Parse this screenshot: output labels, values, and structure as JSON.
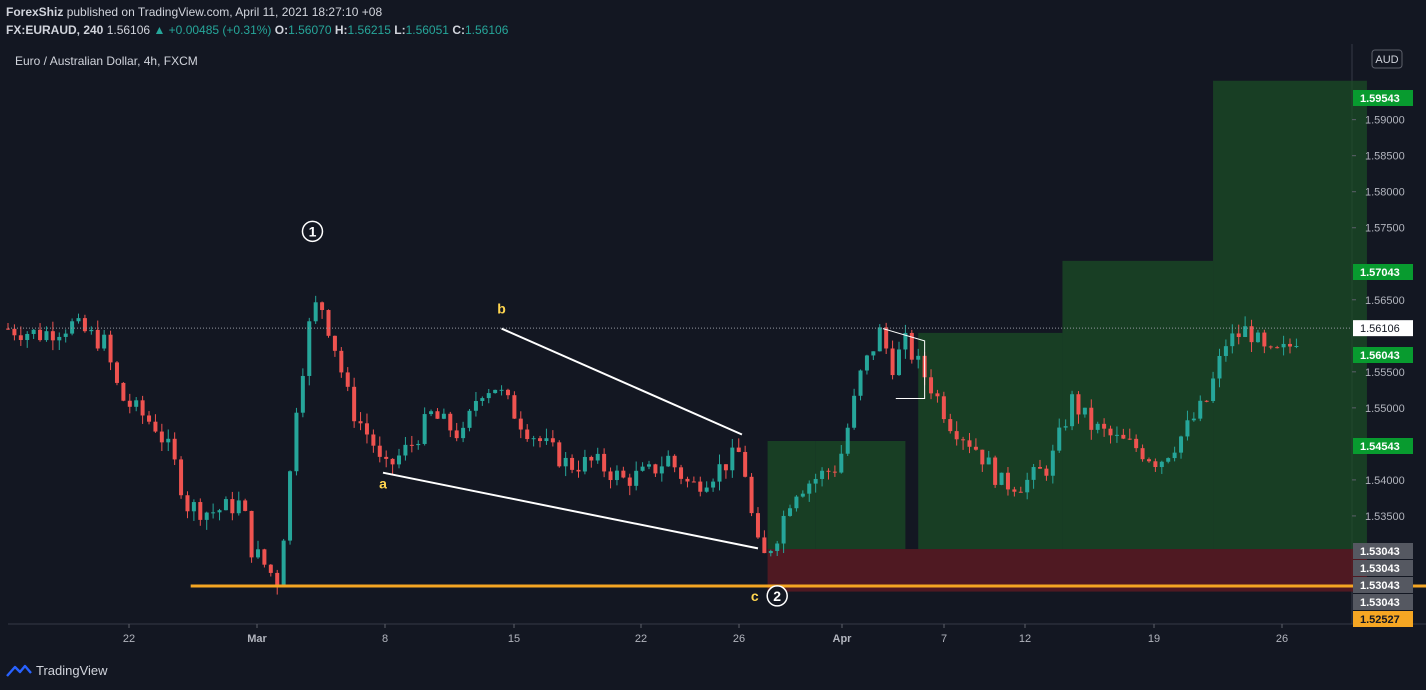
{
  "header": {
    "author": "ForexShiz",
    "published_text": "published on TradingView.com, April 11, 2021 18:27:10 +08",
    "symbol": "FX:EURAUD, 240",
    "last_price": "1.56106",
    "change": "+0.00485 (+0.31%)",
    "open_label": "O:",
    "open": "1.56070",
    "high_label": "H:",
    "high": "1.56215",
    "low_label": "L:",
    "low": "1.56051",
    "close_label": "C:",
    "close": "1.56106"
  },
  "footer": {
    "brand": "TradingView"
  },
  "colors": {
    "background": "#131722",
    "up_candle": "#26a69a",
    "down_candle": "#ef5350",
    "profit_zone": "#1b4d25",
    "loss_zone": "#5a1a22",
    "support_line": "#f5a623",
    "wave_label": "#ffd54f"
  },
  "chart_data": {
    "type": "candlestick",
    "title": "Euro / Australian Dollar, 4h, FXCM",
    "currency": "AUD",
    "x_ticks": [
      "22",
      "Mar",
      "8",
      "15",
      "22",
      "26",
      "Apr",
      "7",
      "12",
      "19",
      "26"
    ],
    "y_ticks": [
      "1.59000",
      "1.58500",
      "1.58000",
      "1.57500",
      "1.56500",
      "1.55500",
      "1.55000",
      "1.54000",
      "1.53500"
    ],
    "y_range": [
      1.52,
      1.6005
    ],
    "current_price": "1.56106",
    "price_labels": [
      {
        "value": "1.59543",
        "kind": "target"
      },
      {
        "value": "1.57043",
        "kind": "target"
      },
      {
        "value": "1.56043",
        "kind": "target"
      },
      {
        "value": "1.54543",
        "kind": "target"
      },
      {
        "value": "1.53043",
        "kind": "level"
      },
      {
        "value": "1.53043",
        "kind": "level"
      },
      {
        "value": "1.53043",
        "kind": "level"
      },
      {
        "value": "1.53043",
        "kind": "level"
      },
      {
        "value": "1.52527",
        "kind": "support"
      }
    ],
    "support_level": 1.52527,
    "wave_labels": [
      {
        "text": "1",
        "date_index": 9.5,
        "price": 1.5745,
        "circled": true
      },
      {
        "text": "b",
        "date_index": 15.4,
        "price": 1.5638,
        "circled": false
      },
      {
        "text": "a",
        "date_index": 11.7,
        "price": 1.5395,
        "circled": false
      },
      {
        "text": "c",
        "date_index": 23.3,
        "price": 1.5239,
        "circled": false
      },
      {
        "text": "2",
        "date_index": 24.0,
        "price": 1.5239,
        "circled": true
      }
    ],
    "channel": {
      "upper": [
        [
          15.4,
          1.561
        ],
        [
          22.9,
          1.5463
        ]
      ],
      "lower": [
        [
          11.7,
          1.541
        ],
        [
          23.4,
          1.5305
        ]
      ]
    },
    "candle_path": [
      [
        0,
        1.561
      ],
      [
        1,
        1.5602
      ],
      [
        2,
        1.5615
      ],
      [
        3,
        1.559
      ],
      [
        3.5,
        1.5515
      ],
      [
        4.6,
        1.5475
      ],
      [
        5.1,
        1.5435
      ],
      [
        5.6,
        1.5365
      ],
      [
        6.3,
        1.5355
      ],
      [
        7.3,
        1.5368
      ],
      [
        7.6,
        1.5305
      ],
      [
        8.4,
        1.526
      ],
      [
        8.7,
        1.536
      ],
      [
        9.0,
        1.5505
      ],
      [
        9.5,
        1.564
      ],
      [
        9.8,
        1.564
      ],
      [
        10.2,
        1.5585
      ],
      [
        10.7,
        1.55
      ],
      [
        11.4,
        1.545
      ],
      [
        11.7,
        1.541
      ],
      [
        12.6,
        1.545
      ],
      [
        13.2,
        1.549
      ],
      [
        14.2,
        1.546
      ],
      [
        14.7,
        1.5525
      ],
      [
        15.2,
        1.553
      ],
      [
        16.1,
        1.5475
      ],
      [
        16.7,
        1.545
      ],
      [
        17.5,
        1.542
      ],
      [
        18.3,
        1.5425
      ],
      [
        19.2,
        1.54
      ],
      [
        20.0,
        1.541
      ],
      [
        20.6,
        1.543
      ],
      [
        21.3,
        1.539
      ],
      [
        22.0,
        1.541
      ],
      [
        22.9,
        1.544
      ],
      [
        23.2,
        1.535
      ],
      [
        23.5,
        1.5285
      ],
      [
        24.0,
        1.5325
      ],
      [
        24.5,
        1.5385
      ],
      [
        25.3,
        1.5405
      ],
      [
        25.9,
        1.542
      ],
      [
        26.3,
        1.549
      ],
      [
        26.6,
        1.5545
      ],
      [
        27.2,
        1.5605
      ],
      [
        27.6,
        1.556
      ],
      [
        28.0,
        1.559
      ],
      [
        28.8,
        1.553
      ],
      [
        29.4,
        1.548
      ],
      [
        30.2,
        1.5445
      ],
      [
        31.0,
        1.5395
      ],
      [
        31.7,
        1.5395
      ],
      [
        32.5,
        1.542
      ],
      [
        33.2,
        1.551
      ],
      [
        33.8,
        1.5475
      ],
      [
        34.6,
        1.5455
      ],
      [
        35.2,
        1.5445
      ],
      [
        35.9,
        1.5425
      ],
      [
        36.6,
        1.546
      ],
      [
        37.4,
        1.551
      ],
      [
        38.0,
        1.559
      ],
      [
        38.7,
        1.561
      ],
      [
        39.3,
        1.557
      ],
      [
        39.9,
        1.558
      ],
      [
        40.4,
        1.561
      ]
    ],
    "trade_zones": [
      {
        "kind": "profit",
        "from_index": 23.7,
        "to_index": 25.2,
        "price_from": 1.5304,
        "price_to": 1.5454
      },
      {
        "kind": "profit",
        "from_index": 25.2,
        "to_index": 28.0,
        "price_from": 1.5304,
        "price_to": 1.5454
      },
      {
        "kind": "profit",
        "from_index": 28.4,
        "to_index": 32.9,
        "price_from": 1.5304,
        "price_to": 1.5604
      },
      {
        "kind": "profit",
        "from_index": 32.9,
        "to_index": 37.6,
        "price_from": 1.5304,
        "price_to": 1.5704
      },
      {
        "kind": "profit",
        "from_index": 37.6,
        "to_index": 42.4,
        "price_from": 1.5304,
        "price_to": 1.5954
      },
      {
        "kind": "loss",
        "from_index": 23.7,
        "to_index": 42.4,
        "price_from": 1.5245,
        "price_to": 1.5304
      }
    ],
    "grid": false,
    "legend": "none"
  }
}
